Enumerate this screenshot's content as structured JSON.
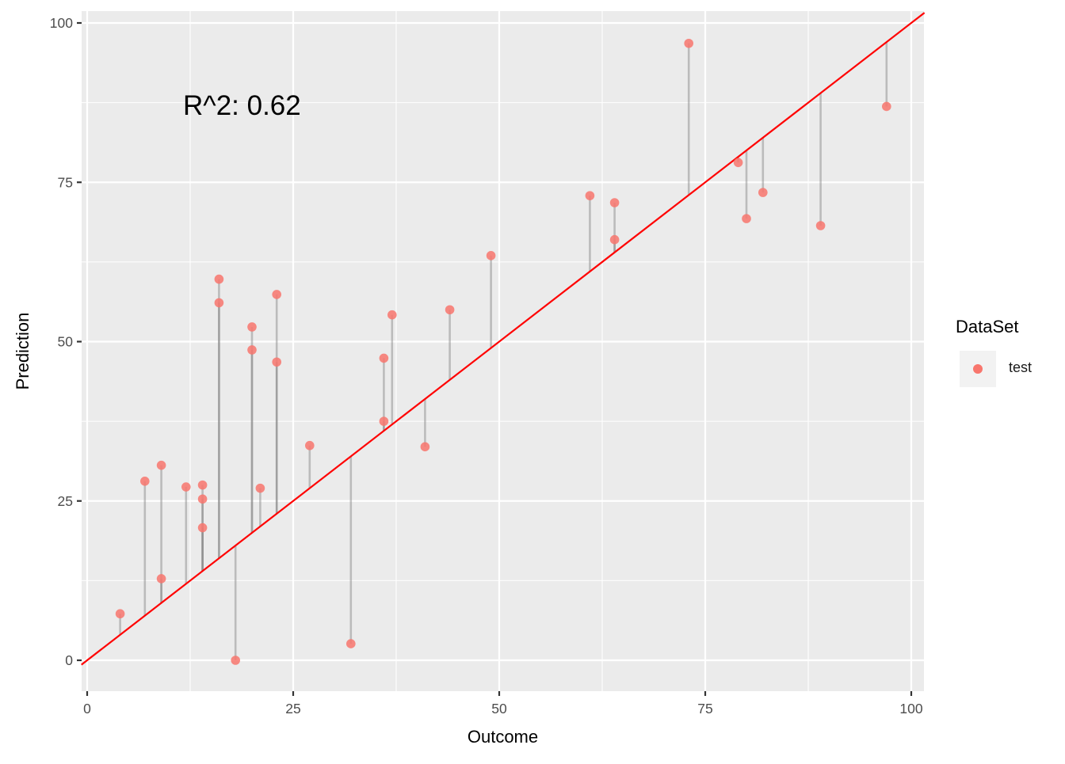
{
  "chart_data": {
    "type": "scatter",
    "title": "",
    "xlabel": "Outcome",
    "ylabel": "Prediction",
    "xlim": [
      -0.7,
      101.6
    ],
    "ylim": [
      -4.8,
      101.9
    ],
    "x_ticks": [
      0,
      25,
      50,
      75,
      100
    ],
    "y_ticks": [
      0,
      25,
      50,
      75,
      100
    ],
    "x_tick_labels": [
      "0",
      "25",
      "50",
      "75",
      "100"
    ],
    "y_tick_labels": [
      "0",
      "25",
      "50",
      "75",
      "100"
    ],
    "grid": true,
    "legend_position": "right",
    "annotation": "R^2: 0.62",
    "reference_line": {
      "type": "identity",
      "slope": 1,
      "intercept": 0,
      "color": "#ff0000"
    },
    "residual_segments": {
      "to": "y = x",
      "color": "#808080"
    },
    "series": [
      {
        "name": "test",
        "color": "#f8766d",
        "points": [
          {
            "x": 4,
            "y": 7.3
          },
          {
            "x": 7,
            "y": 28.1
          },
          {
            "x": 9,
            "y": 30.6
          },
          {
            "x": 9,
            "y": 12.8
          },
          {
            "x": 12,
            "y": 27.2
          },
          {
            "x": 14,
            "y": 27.5
          },
          {
            "x": 14,
            "y": 25.3
          },
          {
            "x": 14,
            "y": 20.8
          },
          {
            "x": 16,
            "y": 59.8
          },
          {
            "x": 16,
            "y": 56.1
          },
          {
            "x": 18,
            "y": 0.0
          },
          {
            "x": 20,
            "y": 52.3
          },
          {
            "x": 20,
            "y": 48.7
          },
          {
            "x": 21,
            "y": 27.0
          },
          {
            "x": 23,
            "y": 57.4
          },
          {
            "x": 23,
            "y": 46.8
          },
          {
            "x": 27,
            "y": 33.7
          },
          {
            "x": 32,
            "y": 2.6
          },
          {
            "x": 36,
            "y": 47.4
          },
          {
            "x": 36,
            "y": 37.5
          },
          {
            "x": 37,
            "y": 54.2
          },
          {
            "x": 41,
            "y": 33.5
          },
          {
            "x": 44,
            "y": 55.0
          },
          {
            "x": 49,
            "y": 63.5
          },
          {
            "x": 61,
            "y": 72.9
          },
          {
            "x": 64,
            "y": 71.8
          },
          {
            "x": 64,
            "y": 66.0
          },
          {
            "x": 73,
            "y": 96.8
          },
          {
            "x": 79,
            "y": 78.1
          },
          {
            "x": 80,
            "y": 69.3
          },
          {
            "x": 82,
            "y": 73.4
          },
          {
            "x": 89,
            "y": 68.2
          },
          {
            "x": 97,
            "y": 86.9
          }
        ]
      }
    ]
  },
  "legend": {
    "title": "DataSet",
    "items": [
      {
        "label": "test",
        "color": "#f8766d"
      }
    ]
  },
  "theme": {
    "panel_bg": "#ebebeb",
    "grid_major": "#ffffff",
    "axis_text": "#4d4d4d",
    "line_color": "#ff0000",
    "point_color": "#f8766d"
  }
}
